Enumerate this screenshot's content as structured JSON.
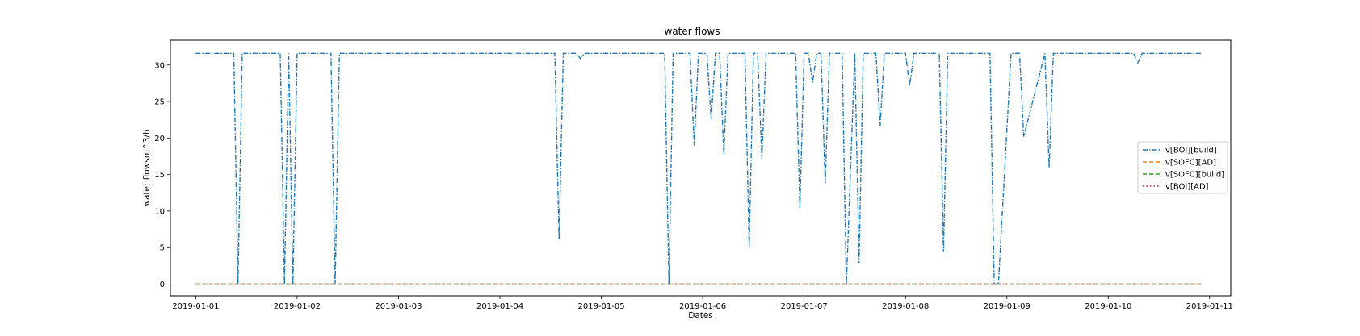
{
  "chart_data": {
    "type": "line",
    "title": "water flows",
    "xlabel": "Dates",
    "ylabel": "water flowsm^3/h",
    "x_range": [
      "2018-12-31T18:00",
      "2019-01-11T05:00"
    ],
    "ylim": [
      -1.6,
      33.4
    ],
    "y_ticks": [
      0,
      5,
      10,
      15,
      20,
      25,
      30
    ],
    "x_ticks": [
      "2019-01-01",
      "2019-01-02",
      "2019-01-03",
      "2019-01-04",
      "2019-01-05",
      "2019-01-06",
      "2019-01-07",
      "2019-01-08",
      "2019-01-09",
      "2019-01-10",
      "2019-01-11"
    ],
    "grid": false,
    "legend_position": "center-right",
    "series": [
      {
        "name": "v[BOI][build]",
        "color": "#1f77b4",
        "linestyle": "dashdot",
        "x": [
          "2019-01-01T00:00",
          "2019-01-01T09:00",
          "2019-01-01T10:00",
          "2019-01-01T11:00",
          "2019-01-01T20:00",
          "2019-01-01T21:00",
          "2019-01-01T22:00",
          "2019-01-01T23:00",
          "2019-01-02T00:00",
          "2019-01-02T08:00",
          "2019-01-02T09:00",
          "2019-01-02T10:00",
          "2019-01-04T13:00",
          "2019-01-04T14:00",
          "2019-01-04T15:00",
          "2019-01-04T18:00",
          "2019-01-04T19:00",
          "2019-01-04T20:00",
          "2019-01-05T15:00",
          "2019-01-05T16:00",
          "2019-01-05T17:00",
          "2019-01-05T21:00",
          "2019-01-05T22:00",
          "2019-01-05T23:00",
          "2019-01-06T01:00",
          "2019-01-06T02:00",
          "2019-01-06T03:00",
          "2019-01-06T04:00",
          "2019-01-06T05:00",
          "2019-01-06T06:00",
          "2019-01-06T07:00",
          "2019-01-06T08:00",
          "2019-01-06T10:00",
          "2019-01-06T11:00",
          "2019-01-06T12:00",
          "2019-01-06T13:00",
          "2019-01-06T14:00",
          "2019-01-06T15:00",
          "2019-01-06T16:00",
          "2019-01-06T17:00",
          "2019-01-06T22:00",
          "2019-01-06T23:00",
          "2019-01-07T00:00",
          "2019-01-07T01:00",
          "2019-01-07T02:00",
          "2019-01-07T03:00",
          "2019-01-07T04:00",
          "2019-01-07T05:00",
          "2019-01-07T06:00",
          "2019-01-07T07:00",
          "2019-01-07T08:00",
          "2019-01-07T09:00",
          "2019-01-07T10:00",
          "2019-01-07T12:00",
          "2019-01-07T13:00",
          "2019-01-07T14:00",
          "2019-01-07T15:00",
          "2019-01-07T16:00",
          "2019-01-07T17:00",
          "2019-01-07T18:00",
          "2019-01-07T19:00",
          "2019-01-07T20:00",
          "2019-01-07T21:00",
          "2019-01-08T00:00",
          "2019-01-08T01:00",
          "2019-01-08T02:00",
          "2019-01-08T08:00",
          "2019-01-08T09:00",
          "2019-01-08T10:00",
          "2019-01-08T19:00",
          "2019-01-08T20:00",
          "2019-01-08T21:00",
          "2019-01-08T22:00",
          "2019-01-09T01:00",
          "2019-01-09T02:00",
          "2019-01-09T03:00",
          "2019-01-09T04:00",
          "2019-01-09T09:00",
          "2019-01-09T10:00",
          "2019-01-09T11:00",
          "2019-01-10T06:00",
          "2019-01-10T07:00",
          "2019-01-10T08:00",
          "2019-01-10T22:00"
        ],
        "y": [
          31.6,
          31.6,
          0,
          31.6,
          31.6,
          0,
          31.6,
          0,
          31.6,
          31.6,
          0,
          31.6,
          31.6,
          6.2,
          31.6,
          31.6,
          30.9,
          31.6,
          31.6,
          0,
          31.6,
          31.6,
          19.0,
          31.6,
          31.6,
          22.5,
          31.6,
          31.6,
          17.8,
          31.6,
          31.6,
          31.6,
          31.6,
          5.0,
          31.6,
          31.6,
          17.2,
          31.6,
          31.6,
          31.6,
          31.6,
          10.4,
          31.6,
          31.6,
          27.6,
          31.6,
          31.6,
          13.8,
          31.6,
          31.6,
          31.6,
          31.6,
          0,
          31.6,
          2.8,
          31.6,
          31.6,
          31.6,
          31.6,
          21.7,
          31.6,
          31.6,
          31.6,
          31.6,
          27.2,
          31.6,
          31.6,
          4.4,
          31.6,
          31.6,
          31.6,
          0,
          0,
          31.6,
          31.6,
          31.6,
          20.2,
          31.6,
          16.0,
          31.6,
          31.6,
          30.3,
          31.6,
          31.6
        ]
      },
      {
        "name": "v[SOFC][AD]",
        "color": "#ff7f0e",
        "linestyle": "dashed",
        "x": [
          "2019-01-01T00:00",
          "2019-01-10T22:00"
        ],
        "y": [
          0,
          0
        ]
      },
      {
        "name": "v[SOFC][build]",
        "color": "#2ca02c",
        "linestyle": "dashed",
        "x": [
          "2019-01-01T00:00",
          "2019-01-10T22:00"
        ],
        "y": [
          0,
          0
        ]
      },
      {
        "name": "v[BOI][AD]",
        "color": "#d62728",
        "linestyle": "dotted",
        "x": [
          "2019-01-01T00:00",
          "2019-01-10T22:00"
        ],
        "y": [
          0,
          0
        ]
      }
    ]
  }
}
